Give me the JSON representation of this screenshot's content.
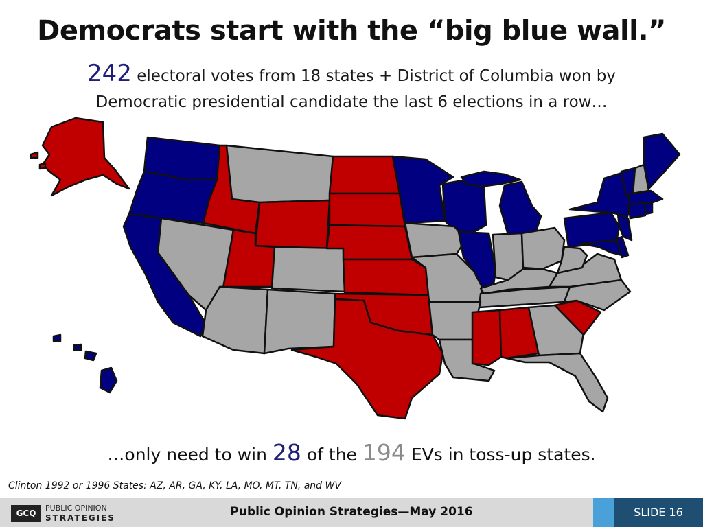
{
  "title": "Democrats start with the “big blue wall.”",
  "subtitle": {
    "big_number": "242",
    "line1": " electoral votes from 18 states + District of Columbia won by",
    "line2": "Democratic presidential candidate the last 6 elections in a row…"
  },
  "bottom_line": {
    "prefix": "…only need to win ",
    "need": "28",
    "middle": " of the ",
    "tossup": "194",
    "suffix": " EVs in toss-up states."
  },
  "footnote": "Clinton 1992 or 1996 States:  AZ, AR, GA, KY, LA, MO, MT, TN, and WV",
  "footer": {
    "center": "Public Opinion Strategies—May 2016",
    "slide": "SLIDE 16",
    "logo_mark": "GCQ",
    "logo_line1": "PUBLIC OPINION",
    "logo_line2": "STRATEGIES"
  },
  "colors": {
    "democrat": "#000080",
    "republican": "#c00000",
    "tossup": "#a6a6a6"
  },
  "map": {
    "democrat_states": [
      "WA",
      "OR",
      "CA",
      "MN",
      "WI",
      "MI",
      "IL",
      "NY",
      "PA",
      "NJ",
      "MD",
      "DE",
      "DC",
      "CT",
      "RI",
      "MA",
      "VT",
      "ME",
      "HI"
    ],
    "republican_states": [
      "AK",
      "ID",
      "UT",
      "WY",
      "ND",
      "SD",
      "NE",
      "KS",
      "OK",
      "TX",
      "MS",
      "AL",
      "SC"
    ],
    "tossup_states": [
      "MT",
      "NV",
      "AZ",
      "CO",
      "NM",
      "IA",
      "MO",
      "AR",
      "LA",
      "IN",
      "OH",
      "KY",
      "TN",
      "WV",
      "VA",
      "NC",
      "GA",
      "FL",
      "NH"
    ]
  }
}
